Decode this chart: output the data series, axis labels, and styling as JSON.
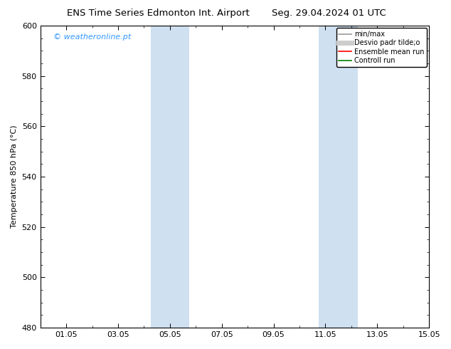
{
  "title_left": "ENS Time Series Edmonton Int. Airport",
  "title_right": "Seg. 29.04.2024 01 UTC",
  "ylabel": "Temperature 850 hPa (°C)",
  "xlim_min": 0.0,
  "xlim_max": 14.0,
  "ylim_min": 480,
  "ylim_max": 600,
  "xtick_positions": [
    1,
    3,
    5,
    7,
    9,
    11,
    13,
    15
  ],
  "xtick_labels": [
    "01.05",
    "03.05",
    "05.05",
    "07.05",
    "09.05",
    "11.05",
    "13.05",
    "15.05"
  ],
  "ytick_positions": [
    480,
    500,
    520,
    540,
    560,
    580,
    600
  ],
  "shaded_bands": [
    {
      "x_start": 4.25,
      "x_end": 5.75,
      "color": "#cfe0f0"
    },
    {
      "x_start": 10.75,
      "x_end": 12.25,
      "color": "#cfe0f0"
    }
  ],
  "watermark_text": "© weatheronline.pt",
  "watermark_color": "#3399ff",
  "legend_entries": [
    {
      "label": "min/max",
      "color": "#999999",
      "lw": 1.2,
      "linestyle": "-"
    },
    {
      "label": "Desvio padr tilde;o",
      "color": "#cccccc",
      "lw": 5,
      "linestyle": "-"
    },
    {
      "label": "Ensemble mean run",
      "color": "#ff0000",
      "lw": 1.2,
      "linestyle": "-"
    },
    {
      "label": "Controll run",
      "color": "#008000",
      "lw": 1.2,
      "linestyle": "-"
    }
  ],
  "bg_color": "#ffffff",
  "title_fontsize": 9.5,
  "tick_fontsize": 8,
  "ylabel_fontsize": 8,
  "watermark_fontsize": 8,
  "legend_fontsize": 7
}
